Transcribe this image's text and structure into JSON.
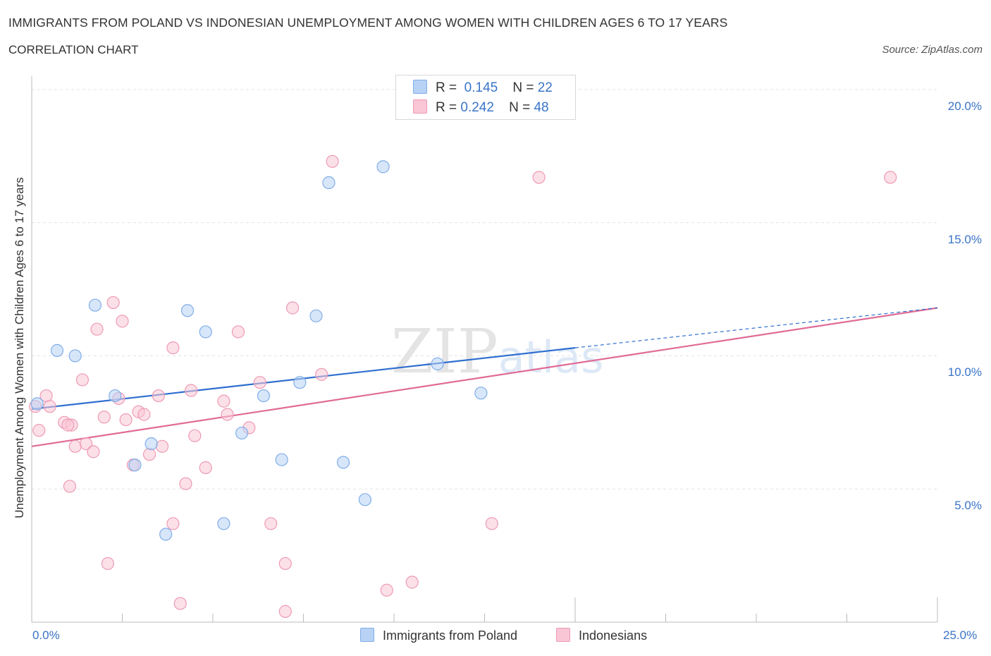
{
  "header": {
    "title": "IMMIGRANTS FROM POLAND VS INDONESIAN UNEMPLOYMENT AMONG WOMEN WITH CHILDREN AGES 6 TO 17 YEARS",
    "subtitle": "CORRELATION CHART",
    "source": "Source: ZipAtlas.com"
  },
  "watermark": "ZIPatlas",
  "legend": {
    "r_label": "R =",
    "n_label": "N =",
    "rows": [
      {
        "r": "0.145",
        "n": "22"
      },
      {
        "r": "0.242",
        "n": "48"
      }
    ]
  },
  "colors": {
    "series_a_fill": "#b8d2f5",
    "series_a_stroke": "#7faee8",
    "series_a_line": "#2f6fcf",
    "series_b_fill": "#f9c6d5",
    "series_b_stroke": "#ee9ab3",
    "series_b_line": "#e06b96",
    "tick_label": "#3a74c8",
    "grid": "#e3e3e3"
  },
  "chart_data": {
    "type": "scatter",
    "title": "IMMIGRANTS FROM POLAND VS INDONESIAN UNEMPLOYMENT AMONG WOMEN WITH CHILDREN AGES 6 TO 17 YEARS",
    "xlabel": "",
    "ylabel": "Unemployment Among Women with Children Ages 6 to 17 years",
    "xlim": [
      0,
      25
    ],
    "ylim": [
      0,
      20.5
    ],
    "x_tick_labels": [
      "0.0%",
      "25.0%"
    ],
    "y_ticks": [
      5,
      10,
      15,
      20
    ],
    "y_tick_labels": [
      "5.0%",
      "10.0%",
      "15.0%",
      "20.0%"
    ],
    "grid": true,
    "legend_position": "top-center",
    "series": [
      {
        "name": "Immigrants from Poland",
        "color_key": "a",
        "points": [
          [
            0.15,
            8.2
          ],
          [
            0.7,
            10.2
          ],
          [
            1.2,
            10.0
          ],
          [
            1.75,
            11.9
          ],
          [
            2.3,
            8.5
          ],
          [
            2.85,
            5.9
          ],
          [
            3.3,
            6.7
          ],
          [
            3.7,
            3.3
          ],
          [
            4.3,
            11.7
          ],
          [
            4.8,
            10.9
          ],
          [
            5.3,
            3.7
          ],
          [
            5.8,
            7.1
          ],
          [
            6.4,
            8.5
          ],
          [
            6.9,
            6.1
          ],
          [
            7.4,
            9.0
          ],
          [
            7.85,
            11.5
          ],
          [
            8.2,
            16.5
          ],
          [
            8.6,
            6.0
          ],
          [
            9.2,
            4.6
          ],
          [
            9.7,
            17.1
          ],
          [
            11.2,
            9.7
          ],
          [
            12.4,
            8.6
          ]
        ],
        "trend": {
          "x": [
            0,
            15
          ],
          "y": [
            8.0,
            10.3
          ]
        },
        "trend_extension": {
          "x": [
            15,
            25
          ],
          "y": [
            10.3,
            11.8
          ]
        }
      },
      {
        "name": "Indonesians",
        "color_key": "b",
        "points": [
          [
            0.1,
            8.1
          ],
          [
            0.2,
            7.2
          ],
          [
            0.4,
            8.5
          ],
          [
            0.5,
            8.1
          ],
          [
            0.9,
            7.5
          ],
          [
            1.1,
            7.4
          ],
          [
            1.05,
            5.1
          ],
          [
            1.2,
            6.6
          ],
          [
            1.4,
            9.1
          ],
          [
            1.5,
            6.7
          ],
          [
            1.7,
            6.4
          ],
          [
            1.8,
            11.0
          ],
          [
            2.0,
            7.7
          ],
          [
            2.1,
            2.2
          ],
          [
            2.25,
            12.0
          ],
          [
            2.4,
            8.4
          ],
          [
            2.5,
            11.3
          ],
          [
            2.6,
            7.6
          ],
          [
            2.8,
            5.9
          ],
          [
            2.95,
            7.9
          ],
          [
            3.1,
            7.8
          ],
          [
            3.25,
            6.3
          ],
          [
            3.5,
            8.5
          ],
          [
            3.6,
            6.6
          ],
          [
            3.9,
            3.7
          ],
          [
            3.9,
            10.3
          ],
          [
            4.1,
            0.7
          ],
          [
            4.25,
            5.2
          ],
          [
            4.4,
            8.7
          ],
          [
            4.5,
            7.0
          ],
          [
            4.8,
            5.8
          ],
          [
            5.3,
            8.3
          ],
          [
            5.4,
            7.8
          ],
          [
            5.7,
            10.9
          ],
          [
            6.0,
            7.3
          ],
          [
            6.3,
            9.0
          ],
          [
            6.6,
            3.7
          ],
          [
            7.0,
            2.2
          ],
          [
            7.0,
            0.4
          ],
          [
            7.2,
            11.8
          ],
          [
            8.0,
            9.3
          ],
          [
            8.3,
            17.3
          ],
          [
            9.8,
            1.2
          ],
          [
            10.5,
            1.5
          ],
          [
            12.7,
            3.7
          ],
          [
            14.0,
            16.7
          ],
          [
            23.7,
            16.7
          ],
          [
            1.0,
            7.4
          ]
        ],
        "trend": {
          "x": [
            0,
            25
          ],
          "y": [
            6.6,
            11.8
          ]
        }
      }
    ]
  },
  "axis": {
    "ylabel": "Unemployment Among Women with Children Ages 6 to 17 years",
    "x_min_label": "0.0%",
    "x_max_label": "25.0%"
  },
  "bottom_legend": {
    "a": "Immigrants from Poland",
    "b": "Indonesians"
  }
}
